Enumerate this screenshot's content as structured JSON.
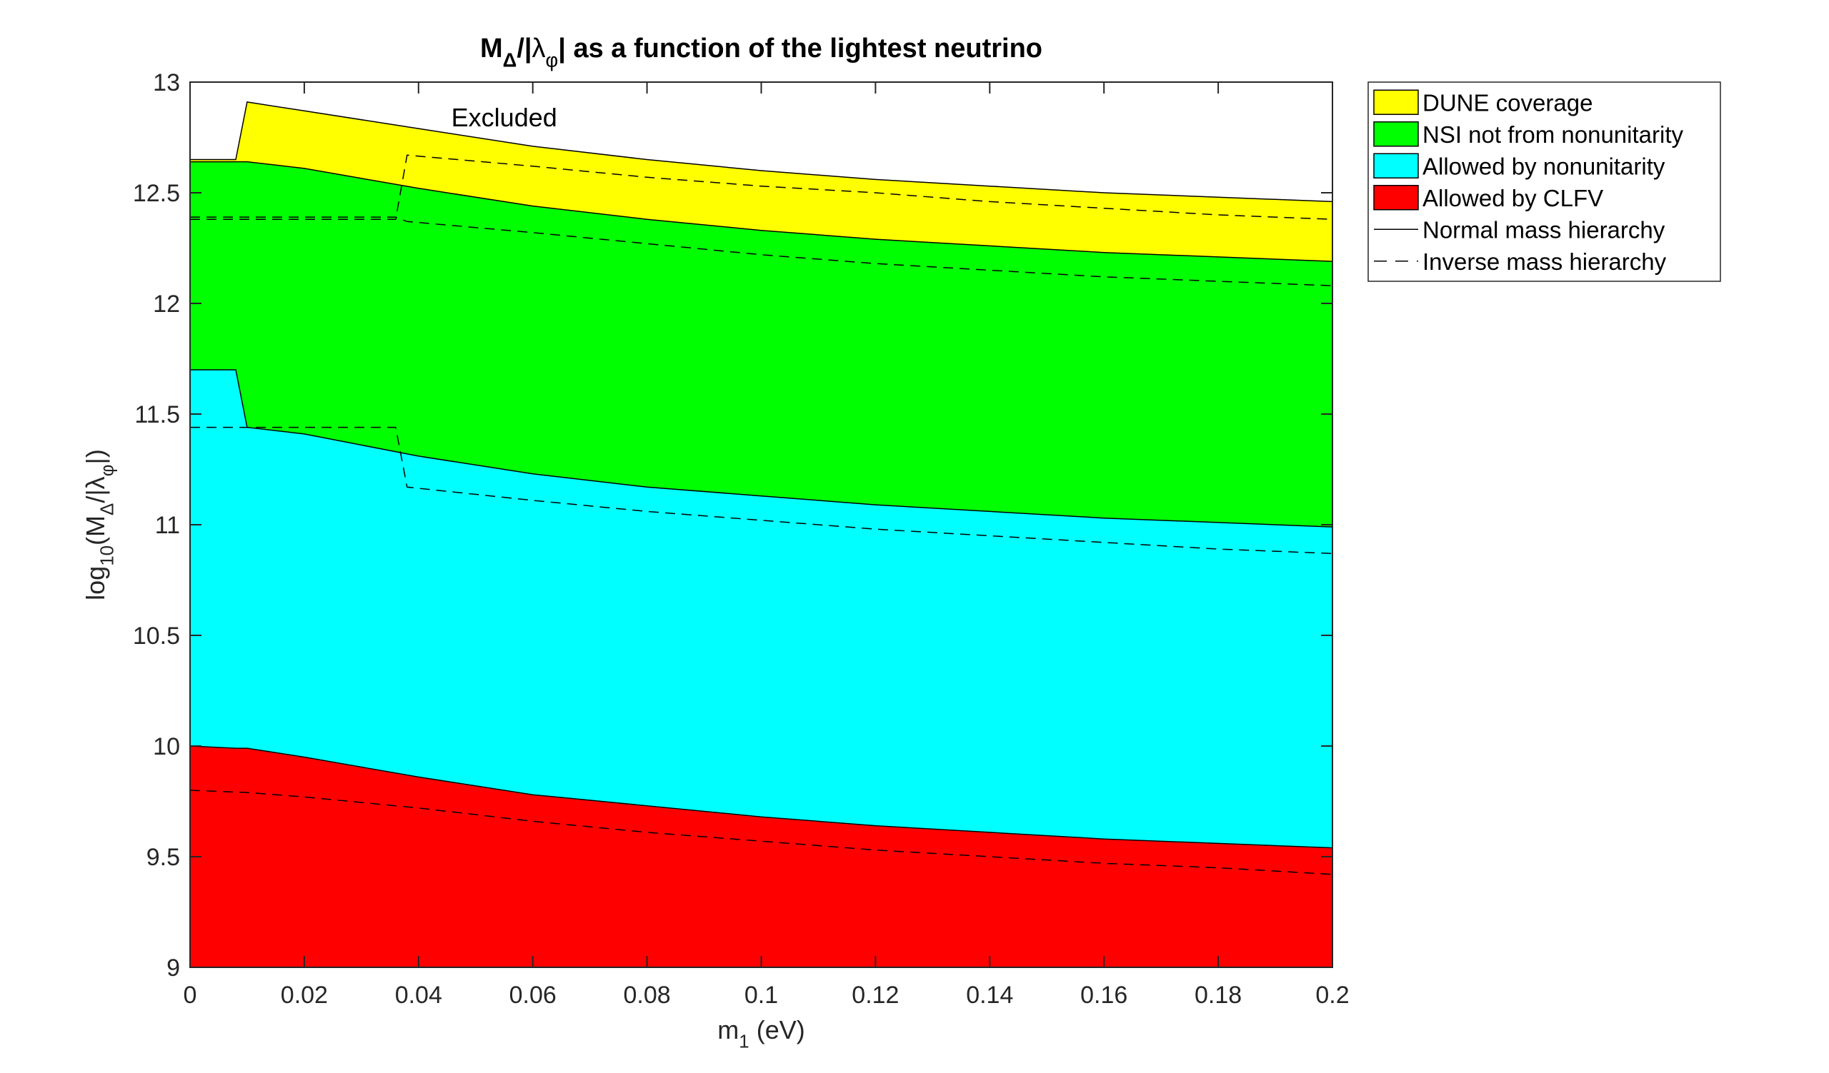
{
  "chart_data": {
    "type": "area",
    "title": {
      "parts": [
        {
          "t": "M",
          "sub": false,
          "bold": true
        },
        {
          "t": "Δ",
          "sub": true,
          "bold": true
        },
        {
          "t": "/|",
          "sub": false,
          "bold": true
        },
        {
          "t": "λ",
          "sub": false,
          "bold": false
        },
        {
          "t": "φ",
          "sub": true,
          "bold": false
        },
        {
          "t": "| as a function of the lightest neutrino",
          "sub": false,
          "bold": true
        }
      ]
    },
    "xlabel": {
      "parts": [
        {
          "t": "m",
          "sub": false
        },
        {
          "t": "1",
          "sub": true
        },
        {
          "t": " (eV)",
          "sub": false
        }
      ]
    },
    "ylabel": {
      "parts": [
        {
          "t": "log",
          "sub": false
        },
        {
          "t": "10",
          "sub": true
        },
        {
          "t": "(M",
          "sub": false
        },
        {
          "t": "Δ",
          "sub": true
        },
        {
          "t": "/|λ",
          "sub": false
        },
        {
          "t": "φ",
          "sub": true
        },
        {
          "t": "|)",
          "sub": false
        }
      ]
    },
    "xlim": [
      0,
      0.2
    ],
    "ylim": [
      9,
      13
    ],
    "xticks": [
      "0",
      "0.02",
      "0.04",
      "0.06",
      "0.08",
      "0.1",
      "0.12",
      "0.14",
      "0.16",
      "0.18",
      "0.2"
    ],
    "yticks": [
      "9",
      "9.5",
      "10",
      "10.5",
      "11",
      "11.5",
      "12",
      "12.5",
      "13"
    ],
    "grid": false,
    "legend_position": "outside-right-top",
    "annotation": "Excluded",
    "areas": [
      {
        "name": "DUNE coverage",
        "color": "#ffff00",
        "x": [
          0,
          0.008,
          0.01,
          0.02,
          0.04,
          0.06,
          0.08,
          0.1,
          0.12,
          0.14,
          0.16,
          0.18,
          0.2
        ],
        "upper": [
          12.65,
          12.65,
          12.91,
          12.87,
          12.79,
          12.71,
          12.65,
          12.6,
          12.56,
          12.53,
          12.5,
          12.48,
          12.46
        ],
        "lower": [
          12.64,
          12.64,
          12.64,
          12.61,
          12.52,
          12.44,
          12.38,
          12.33,
          12.29,
          12.26,
          12.23,
          12.21,
          12.19
        ]
      },
      {
        "name": "NSI not from nonunitarity",
        "color": "#00ff00",
        "x": [
          0,
          0.008,
          0.01,
          0.02,
          0.04,
          0.06,
          0.08,
          0.1,
          0.12,
          0.14,
          0.16,
          0.18,
          0.2
        ],
        "upper": [
          12.64,
          12.64,
          12.64,
          12.61,
          12.52,
          12.44,
          12.38,
          12.33,
          12.29,
          12.26,
          12.23,
          12.21,
          12.19
        ],
        "lower": [
          11.7,
          11.7,
          11.44,
          11.41,
          11.31,
          11.23,
          11.17,
          11.13,
          11.09,
          11.06,
          11.03,
          11.01,
          10.99
        ]
      },
      {
        "name": "Allowed by nonunitarity",
        "color": "#00ffff",
        "x": [
          0,
          0.008,
          0.01,
          0.02,
          0.04,
          0.06,
          0.08,
          0.1,
          0.12,
          0.14,
          0.16,
          0.18,
          0.2
        ],
        "upper": [
          11.7,
          11.7,
          11.44,
          11.41,
          11.31,
          11.23,
          11.17,
          11.13,
          11.09,
          11.06,
          11.03,
          11.01,
          10.99
        ],
        "lower": [
          10.0,
          9.99,
          9.99,
          9.95,
          9.86,
          9.78,
          9.73,
          9.68,
          9.64,
          9.61,
          9.58,
          9.56,
          9.54
        ]
      },
      {
        "name": "Allowed by CLFV",
        "color": "#ff0000",
        "x": [
          0,
          0.008,
          0.01,
          0.02,
          0.04,
          0.06,
          0.08,
          0.1,
          0.12,
          0.14,
          0.16,
          0.18,
          0.2
        ],
        "upper": [
          10.0,
          9.99,
          9.99,
          9.95,
          9.86,
          9.78,
          9.73,
          9.68,
          9.64,
          9.61,
          9.58,
          9.56,
          9.54
        ],
        "lower": [
          9,
          9,
          9,
          9,
          9,
          9,
          9,
          9,
          9,
          9,
          9,
          9,
          9
        ]
      }
    ],
    "dashed_lines": [
      {
        "x": [
          0,
          0.036,
          0.038,
          0.06,
          0.08,
          0.1,
          0.12,
          0.14,
          0.16,
          0.18,
          0.2
        ],
        "y": [
          12.38,
          12.38,
          12.67,
          12.62,
          12.57,
          12.53,
          12.5,
          12.46,
          12.43,
          12.4,
          12.38
        ]
      },
      {
        "x": [
          0,
          0.036,
          0.038,
          0.06,
          0.08,
          0.1,
          0.12,
          0.14,
          0.16,
          0.18,
          0.2
        ],
        "y": [
          12.39,
          12.39,
          12.37,
          12.32,
          12.27,
          12.22,
          12.18,
          12.15,
          12.12,
          12.1,
          12.08
        ]
      },
      {
        "x": [
          0,
          0.036,
          0.038,
          0.06,
          0.08,
          0.1,
          0.12,
          0.14,
          0.16,
          0.18,
          0.2
        ],
        "y": [
          11.44,
          11.44,
          11.17,
          11.11,
          11.06,
          11.02,
          10.98,
          10.95,
          10.92,
          10.89,
          10.87
        ]
      },
      {
        "x": [
          0,
          0.01,
          0.02,
          0.04,
          0.06,
          0.08,
          0.1,
          0.12,
          0.14,
          0.16,
          0.18,
          0.2
        ],
        "y": [
          9.8,
          9.79,
          9.77,
          9.72,
          9.66,
          9.61,
          9.57,
          9.53,
          9.5,
          9.47,
          9.45,
          9.42
        ]
      }
    ],
    "legend": [
      {
        "label": "DUNE coverage",
        "kind": "patch",
        "color": "#ffff00"
      },
      {
        "label": "NSI not from nonunitarity",
        "kind": "patch",
        "color": "#00ff00"
      },
      {
        "label": "Allowed by nonunitarity",
        "kind": "patch",
        "color": "#00ffff"
      },
      {
        "label": "Allowed by CLFV",
        "kind": "patch",
        "color": "#ff0000"
      },
      {
        "label": "Normal mass hierarchy",
        "kind": "line",
        "style": "solid"
      },
      {
        "label": "Inverse mass hierarchy",
        "kind": "line",
        "style": "dashed"
      }
    ]
  }
}
